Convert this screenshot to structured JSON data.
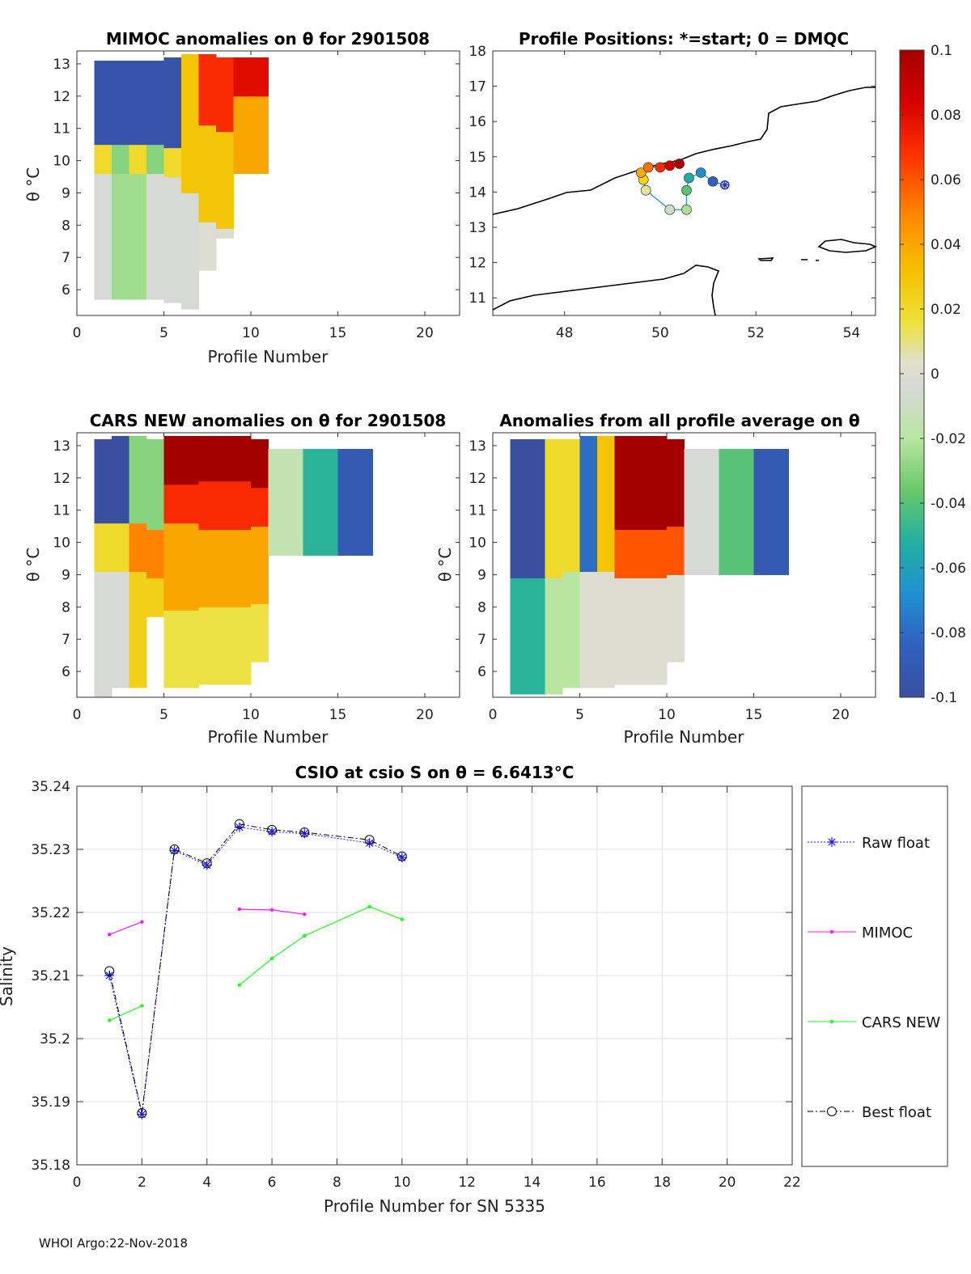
{
  "footer": "WHOI Argo:22-Nov-2018",
  "colorbar": {
    "ticks": [
      "0.1",
      "0.08",
      "0.06",
      "0.04",
      "0.02",
      "0",
      "-0.02",
      "-0.04",
      "-0.06",
      "-0.08",
      "-0.1"
    ],
    "range": [
      -0.1,
      0.1
    ]
  },
  "chart_data": [
    {
      "type": "heatmap",
      "title": "MIMOC anomalies on θ  for 2901508",
      "xlabel": "Profile Number",
      "ylabel": "θ °C",
      "xlim": [
        0,
        22
      ],
      "ylim": [
        5.2,
        13.4
      ],
      "xticks": [
        "0",
        "5",
        "10",
        "15",
        "20"
      ],
      "yticks": [
        "6",
        "7",
        "8",
        "9",
        "10",
        "11",
        "12",
        "13"
      ]
    },
    {
      "type": "scatter",
      "title": "Profile Positions: *=start; 0 = DMQC",
      "xlim": [
        46.5,
        54.5
      ],
      "ylim": [
        10.5,
        18
      ],
      "xticks": [
        "48",
        "50",
        "52",
        "54"
      ],
      "yticks": [
        "11",
        "12",
        "13",
        "14",
        "15",
        "16",
        "17",
        "18"
      ],
      "positions": [
        {
          "lon": 51.35,
          "lat": 14.2
        },
        {
          "lon": 51.1,
          "lat": 14.3
        },
        {
          "lon": 50.85,
          "lat": 14.55
        },
        {
          "lon": 50.6,
          "lat": 14.4
        },
        {
          "lon": 50.55,
          "lat": 14.05
        },
        {
          "lon": 50.55,
          "lat": 13.5
        },
        {
          "lon": 50.2,
          "lat": 13.5
        },
        {
          "lon": 49.7,
          "lat": 14.05
        },
        {
          "lon": 49.65,
          "lat": 14.35
        },
        {
          "lon": 49.6,
          "lat": 14.55
        },
        {
          "lon": 49.75,
          "lat": 14.7
        },
        {
          "lon": 50.0,
          "lat": 14.7
        },
        {
          "lon": 50.2,
          "lat": 14.75
        },
        {
          "lon": 50.4,
          "lat": 14.8
        }
      ]
    },
    {
      "type": "heatmap",
      "title": "CARS NEW anomalies on θ for 2901508",
      "xlabel": "Profile Number",
      "ylabel": "θ °C",
      "xlim": [
        0,
        22
      ],
      "ylim": [
        5.2,
        13.4
      ],
      "xticks": [
        "0",
        "5",
        "10",
        "15",
        "20"
      ],
      "yticks": [
        "6",
        "7",
        "8",
        "9",
        "10",
        "11",
        "12",
        "13"
      ]
    },
    {
      "type": "heatmap",
      "title": "Anomalies from all profile average on θ",
      "xlabel": "Profile Number",
      "ylabel": "θ °C",
      "xlim": [
        0,
        22
      ],
      "ylim": [
        5.2,
        13.4
      ],
      "xticks": [
        "0",
        "5",
        "10",
        "15",
        "20"
      ],
      "yticks": [
        "6",
        "7",
        "8",
        "9",
        "10",
        "11",
        "12",
        "13"
      ]
    },
    {
      "type": "line",
      "title": "CSIO at csio S on θ = 6.6413°C",
      "xlabel": "Profile Number for SN 5335",
      "ylabel": "Salinity",
      "xlim": [
        0,
        22
      ],
      "ylim": [
        35.18,
        35.24
      ],
      "xticks": [
        "0",
        "2",
        "4",
        "6",
        "8",
        "10",
        "12",
        "14",
        "16",
        "18",
        "20",
        "22"
      ],
      "yticks": [
        "35.18",
        "35.19",
        "35.2",
        "35.21",
        "35.22",
        "35.23",
        "35.24"
      ],
      "series": [
        {
          "name": "Raw float",
          "color": "#1a1aff",
          "marker": "star",
          "x": [
            1,
            2,
            3,
            4,
            5,
            6,
            7,
            9,
            10
          ],
          "y": [
            35.21,
            35.188,
            35.2298,
            35.2275,
            35.2335,
            35.2328,
            35.2325,
            35.231,
            35.2287
          ]
        },
        {
          "name": "MIMOC",
          "color": "#ff1aff",
          "marker": "dot",
          "segments": [
            {
              "x": [
                1,
                2
              ],
              "y": [
                35.2165,
                35.2185
              ]
            },
            {
              "x": [
                5,
                6,
                7
              ],
              "y": [
                35.2205,
                35.2204,
                35.2197
              ]
            }
          ]
        },
        {
          "name": "CARS NEW",
          "color": "#1aff1a",
          "marker": "dot",
          "segments": [
            {
              "x": [
                1,
                2
              ],
              "y": [
                35.2029,
                35.2052
              ]
            },
            {
              "x": [
                5,
                6,
                7,
                9,
                10
              ],
              "y": [
                35.2085,
                35.2127,
                35.2163,
                35.2209,
                35.2189
              ]
            }
          ]
        },
        {
          "name": "Best float",
          "color": "#000000",
          "marker": "circle",
          "x": [
            1,
            2,
            3,
            4,
            5,
            6,
            7,
            9,
            10
          ],
          "y": [
            35.2107,
            35.1882,
            35.23,
            35.2278,
            35.234,
            35.2331,
            35.2327,
            35.2315,
            35.2289
          ]
        }
      ]
    }
  ]
}
